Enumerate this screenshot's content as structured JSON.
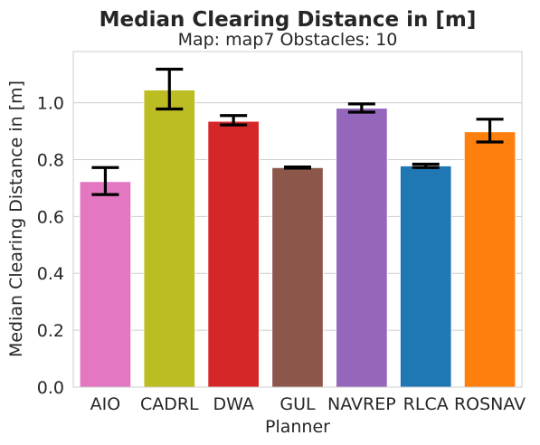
{
  "chart_data": {
    "type": "bar",
    "title": "Median Clearing Distance in [m]",
    "subtitle": "Map: map7 Obstacles: 10",
    "xlabel": "Planner",
    "ylabel": "Median Clearing Distance in [m]",
    "ylim": [
      0,
      1.18
    ],
    "yticks": [
      "0.0",
      "0.2",
      "0.4",
      "0.6",
      "0.8",
      "1.0"
    ],
    "grid": true,
    "categories": [
      "AIO",
      "CADRL",
      "DWA",
      "GUL",
      "NAVREP",
      "RLCA",
      "ROSNAV"
    ],
    "values": [
      0.723,
      1.045,
      0.935,
      0.772,
      0.981,
      0.778,
      0.898
    ],
    "error_low": [
      0.677,
      0.978,
      0.922,
      0.77,
      0.967,
      0.772,
      0.862
    ],
    "error_high": [
      0.772,
      1.118,
      0.955,
      0.774,
      0.996,
      0.784,
      0.942
    ],
    "colors": [
      "#e377c2",
      "#bcbd22",
      "#d62728",
      "#8c564b",
      "#9467bd",
      "#1f77b4",
      "#ff7f0e"
    ]
  }
}
